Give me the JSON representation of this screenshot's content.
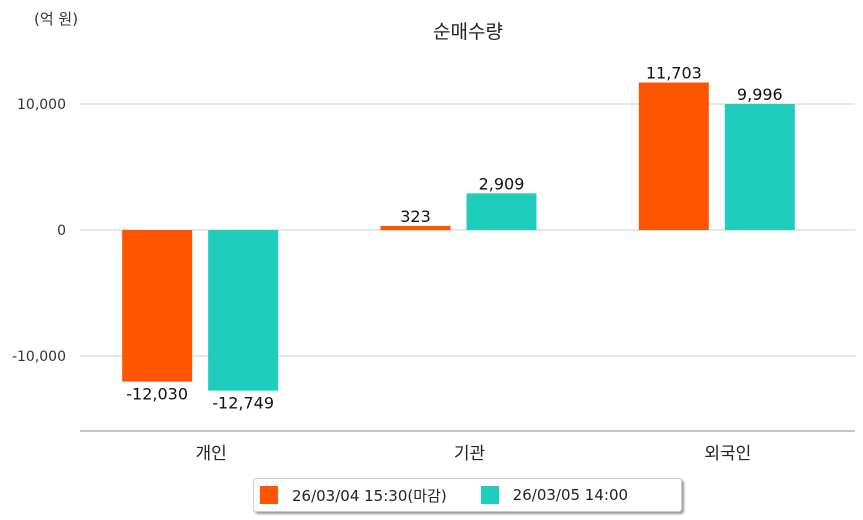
{
  "chart_data": {
    "type": "bar",
    "title": "순매수량",
    "unit_label": "(억 원)",
    "categories": [
      "개인",
      "기관",
      "외국인"
    ],
    "series": [
      {
        "name": "26/03/04 15:30(마감)",
        "color": "#FF5400",
        "values": [
          -12030,
          323,
          11703
        ],
        "labels": [
          "-12,030",
          "323",
          "11,703"
        ]
      },
      {
        "name": "26/03/05 14:00",
        "color": "#1ECDBB",
        "values": [
          -12749,
          2909,
          9996
        ],
        "labels": [
          "-12,749",
          "2,909",
          "9,996"
        ]
      }
    ],
    "yticks": [
      10000,
      0,
      -10000
    ],
    "ytick_labels": [
      "10,000",
      "0",
      "-10,000"
    ],
    "ylim": [
      -16000,
      17000
    ],
    "grid": true,
    "legend_position": "bottom"
  }
}
